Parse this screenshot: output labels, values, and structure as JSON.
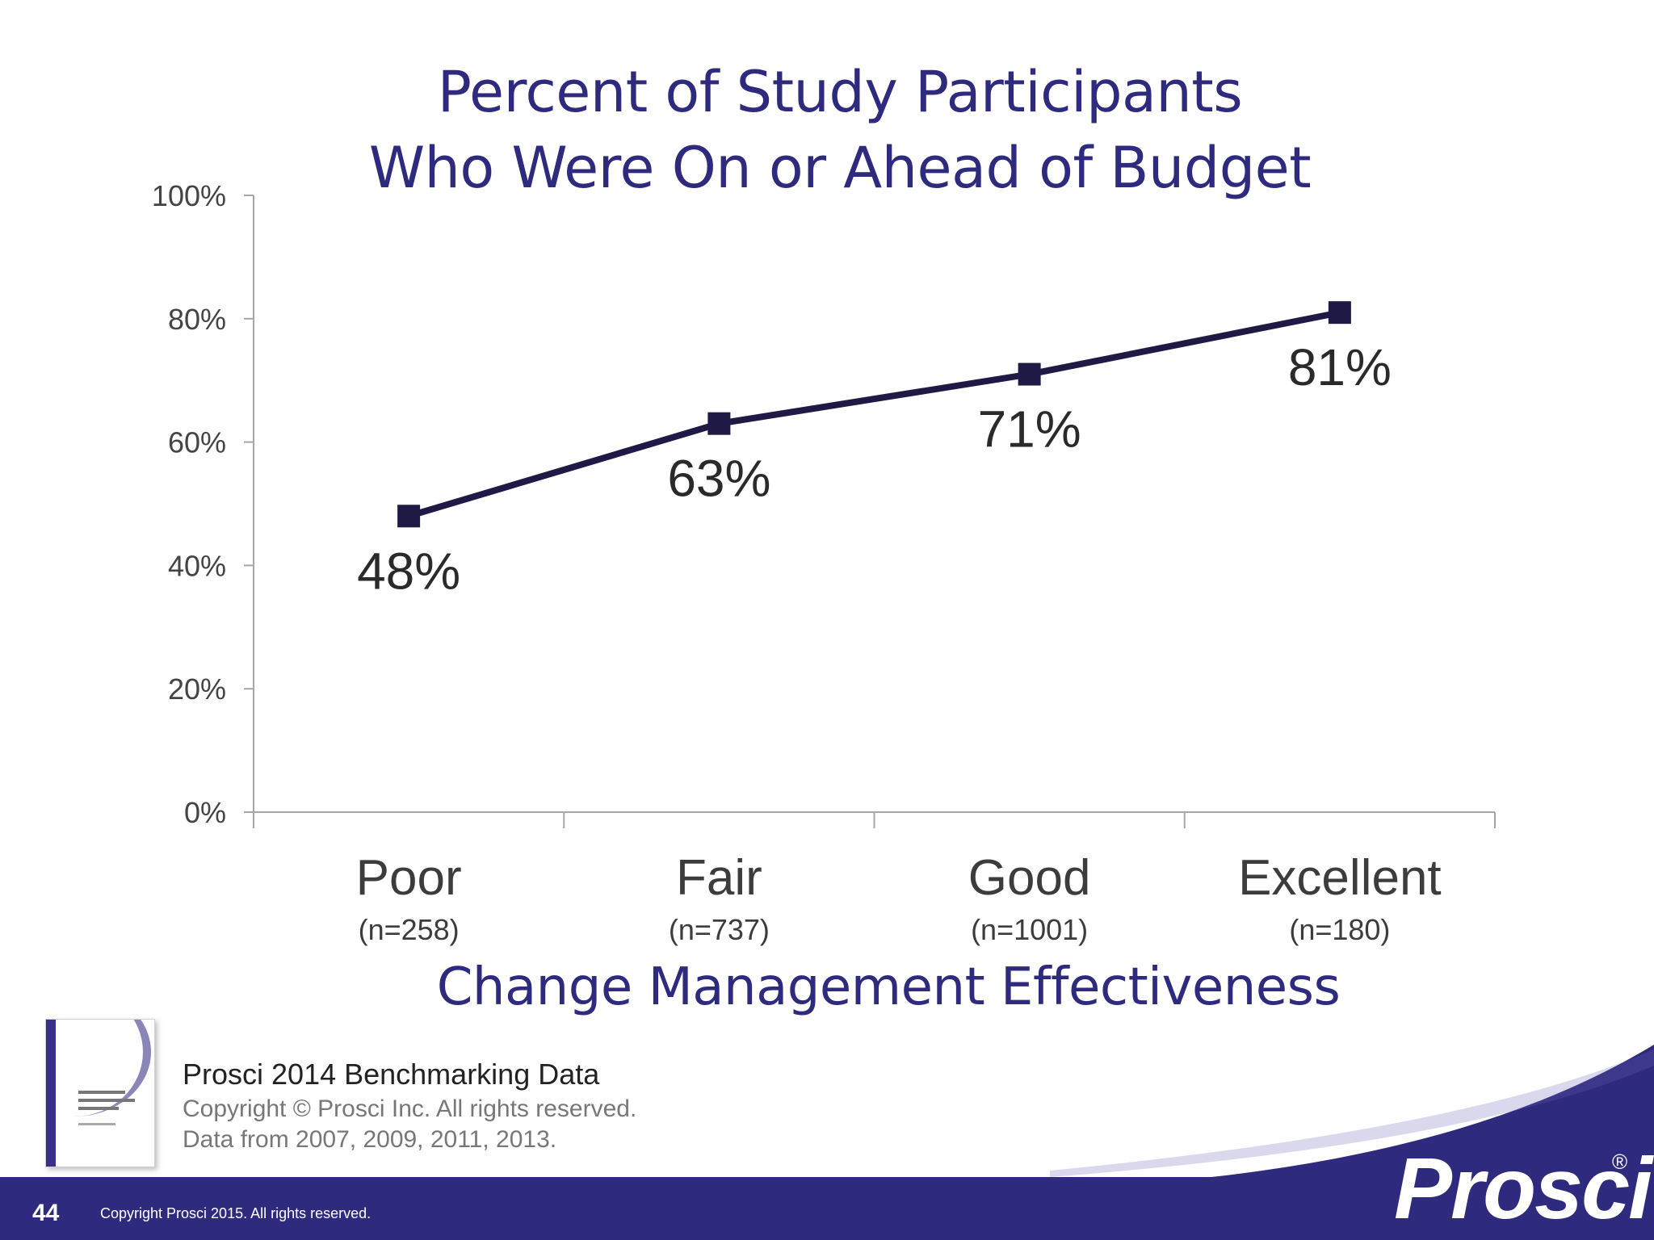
{
  "slide": {
    "title_line1": "Percent of Study Participants",
    "title_line2": "Who Were On or Ahead of Budget",
    "page_number": "44",
    "footer_copyright": "Copyright Prosci 2015. All rights reserved.",
    "logo_text": "Prosci",
    "logo_mark": "®"
  },
  "source": {
    "title": "Prosci 2014 Benchmarking Data",
    "copyright": "Copyright © Prosci Inc. All rights reserved.",
    "years": "Data from 2007, 2009, 2011, 2013."
  },
  "colors": {
    "title": "#2e2a7e",
    "line": "#1f1a45",
    "footer_band": "#2e2a7e",
    "axis": "#a6a6a6"
  },
  "chart_data": {
    "type": "line",
    "title": "Percent of Study Participants Who Were On or Ahead of Budget",
    "xlabel": "Change Management Effectiveness",
    "ylabel": "",
    "ylim": [
      0,
      100
    ],
    "y_ticks": [
      "0%",
      "20%",
      "40%",
      "60%",
      "80%",
      "100%"
    ],
    "y_tick_values": [
      0,
      20,
      40,
      60,
      80,
      100
    ],
    "categories": [
      "Poor",
      "Fair",
      "Good",
      "Excellent"
    ],
    "sample_sizes": [
      "(n=258)",
      "(n=737)",
      "(n=1001)",
      "(n=180)"
    ],
    "values": [
      48,
      63,
      71,
      81
    ],
    "data_labels": [
      "48%",
      "63%",
      "71%",
      "81%"
    ],
    "grid": false,
    "legend": "none"
  }
}
